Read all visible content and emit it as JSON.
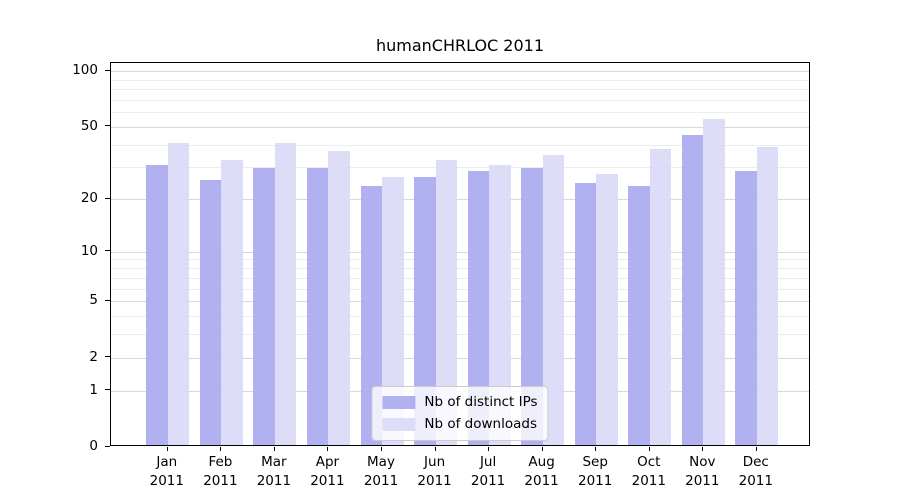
{
  "chart_data": {
    "type": "bar",
    "title": "humanCHRLOC 2011",
    "categories": [
      {
        "month": "Jan",
        "year": "2011"
      },
      {
        "month": "Feb",
        "year": "2011"
      },
      {
        "month": "Mar",
        "year": "2011"
      },
      {
        "month": "Apr",
        "year": "2011"
      },
      {
        "month": "May",
        "year": "2011"
      },
      {
        "month": "Jun",
        "year": "2011"
      },
      {
        "month": "Jul",
        "year": "2011"
      },
      {
        "month": "Aug",
        "year": "2011"
      },
      {
        "month": "Sep",
        "year": "2011"
      },
      {
        "month": "Oct",
        "year": "2011"
      },
      {
        "month": "Nov",
        "year": "2011"
      },
      {
        "month": "Dec",
        "year": "2011"
      }
    ],
    "series": [
      {
        "name": "Nb of distinct IPs",
        "color": "#a9a9ef",
        "values": [
          30,
          25,
          29,
          29,
          23,
          26,
          28,
          29,
          24,
          23,
          44,
          28
        ]
      },
      {
        "name": "Nb of downloads",
        "color": "#d9d9f6",
        "values": [
          40,
          32,
          40,
          36,
          26,
          32,
          30,
          34,
          27,
          37,
          54,
          38
        ]
      }
    ],
    "yscale": "log1p",
    "yticks_major": [
      0,
      1,
      2,
      5,
      10,
      20,
      50,
      100
    ],
    "yticks_minor": [
      3,
      4,
      6,
      7,
      8,
      9,
      30,
      40,
      60,
      70,
      80,
      90
    ],
    "ylim": [
      0,
      110
    ],
    "grid": true,
    "legend_position": "lower center",
    "colors": {
      "grid_major": "#d9d9d9",
      "grid_minor": "#ececec",
      "axis": "#000000",
      "text": "#000000"
    }
  }
}
